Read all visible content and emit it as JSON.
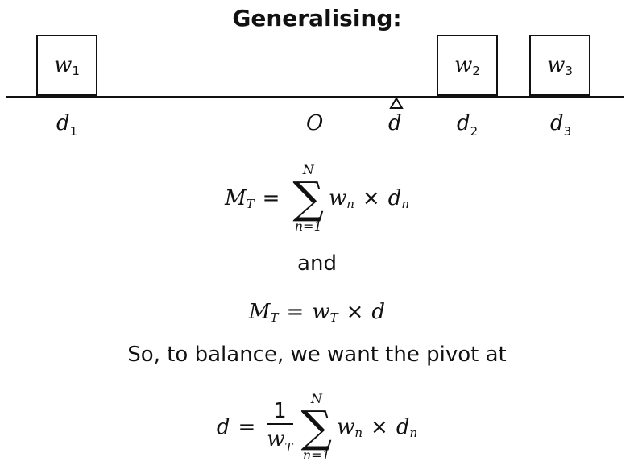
{
  "title": "Generalising:",
  "boxes": [
    {
      "var": "w",
      "sub": "1"
    },
    {
      "var": "w",
      "sub": "2"
    },
    {
      "var": "w",
      "sub": "3"
    }
  ],
  "labels": {
    "d1": {
      "var": "d",
      "sub": "1"
    },
    "origin": "O",
    "d": "d",
    "d2": {
      "var": "d",
      "sub": "2"
    },
    "d3": {
      "var": "d",
      "sub": "3"
    }
  },
  "formula1": {
    "lhs": "M",
    "lhs_sub": "T",
    "eq": "=",
    "sigma": "∑",
    "upper": "N",
    "lower": "n=1",
    "w": "w",
    "w_sub": "n",
    "times": "×",
    "d": "d",
    "d_sub": "n"
  },
  "and_text": "and",
  "formula2": {
    "lhs": "M",
    "lhs_sub": "T",
    "eq": "=",
    "w": "w",
    "w_sub": "T",
    "times": "×",
    "d": "d"
  },
  "sentence": "So, to balance, we want the pivot at",
  "formula3": {
    "lhs": "d",
    "eq": "=",
    "num": "1",
    "den": "w",
    "den_sub": "T",
    "sigma": "∑",
    "upper": "N",
    "lower": "n=1",
    "w": "w",
    "w_sub": "n",
    "times": "×",
    "d": "d",
    "d_sub": "n"
  }
}
